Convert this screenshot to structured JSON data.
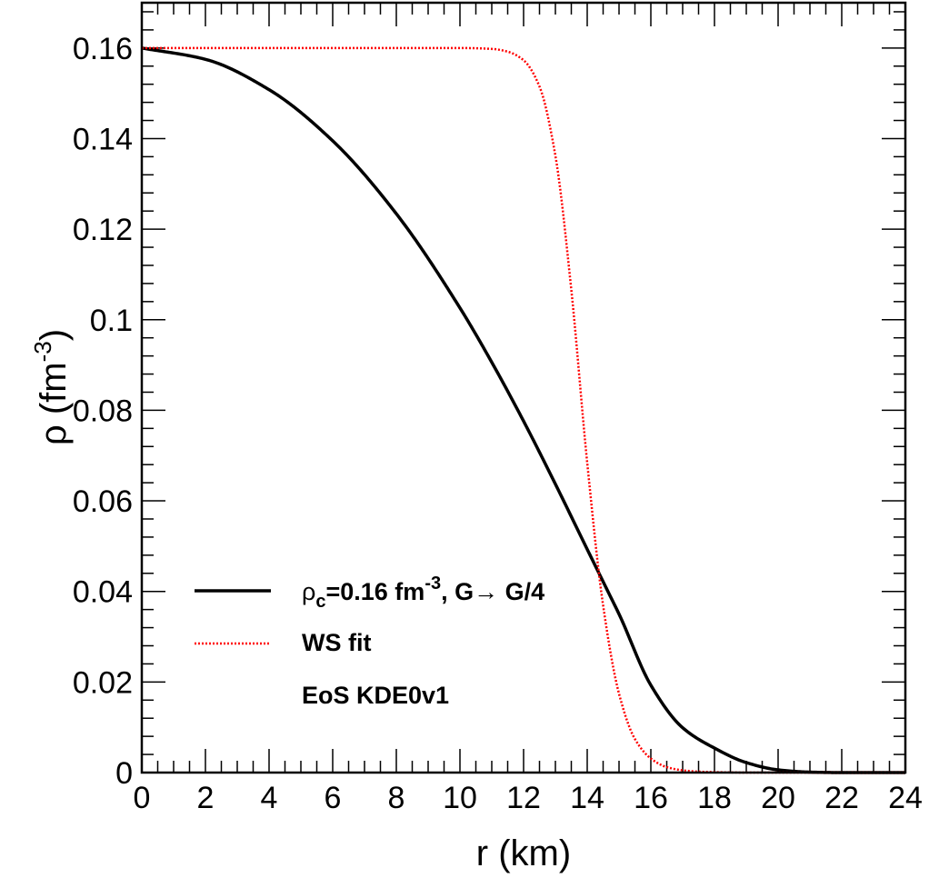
{
  "chart_data": {
    "type": "line",
    "xlabel": "r (km)",
    "ylabel": "ρ (fm⁻³)",
    "xlim": [
      0,
      24
    ],
    "ylim": [
      0,
      0.17
    ],
    "xticks": [
      "0",
      "2",
      "4",
      "6",
      "8",
      "10",
      "12",
      "14",
      "16",
      "18",
      "20",
      "22",
      "24"
    ],
    "yticks": [
      "0",
      "0.02",
      "0.04",
      "0.06",
      "0.08",
      "0.1",
      "0.12",
      "0.14",
      "0.16"
    ],
    "grid": false,
    "legend_position": "bottom-left",
    "series": [
      {
        "name": "ρc=0.16 fm⁻³, G→ G/4",
        "color": "#000000",
        "style": "solid",
        "x": [
          0,
          2,
          4,
          6,
          8,
          10,
          11,
          12,
          13,
          14,
          14.7,
          15,
          16,
          17,
          18,
          19,
          20,
          21,
          22,
          23,
          24
        ],
        "y": [
          0.16,
          0.1575,
          0.1508,
          0.1395,
          0.1234,
          0.1026,
          0.0906,
          0.0776,
          0.0637,
          0.0493,
          0.0393,
          0.035,
          0.0193,
          0.0099,
          0.0054,
          0.0022,
          0.0006,
          0.0001,
          0.0,
          0.0,
          0.0
        ]
      },
      {
        "name": "WS fit",
        "color": "#ff0000",
        "style": "dotted",
        "x": [
          0,
          2,
          4,
          6,
          8,
          10,
          11,
          11.5,
          12,
          12.5,
          13,
          13.5,
          14,
          14.5,
          15,
          15.5,
          16,
          16.5,
          17,
          17.5,
          18,
          19,
          20,
          22,
          24
        ],
        "y": [
          0.16,
          0.16,
          0.16,
          0.16,
          0.16,
          0.16,
          0.1598,
          0.1592,
          0.1573,
          0.1515,
          0.1362,
          0.1066,
          0.0684,
          0.0369,
          0.0174,
          0.0074,
          0.0031,
          0.0012,
          0.0005,
          0.0002,
          0.0001,
          0.0,
          0.0,
          0.0,
          0.0
        ]
      }
    ],
    "annotations": [
      "EoS KDE0v1"
    ]
  },
  "legend": {
    "items": [
      {
        "rho": "ρ",
        "sub": "c",
        "mid": "=0.16 fm",
        "sup": "-3",
        "tail": ", G→ G/4"
      },
      {
        "label": "WS fit"
      }
    ],
    "note": "EoS KDE0v1"
  },
  "axes": {
    "x_title": "r (km)",
    "y_title_main": "ρ (fm",
    "y_title_sup": "-3",
    "y_title_close": ")"
  }
}
